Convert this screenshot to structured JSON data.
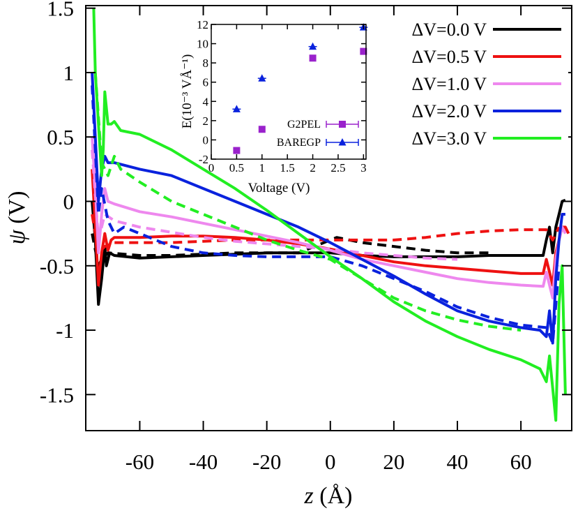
{
  "chart_data": [
    {
      "type": "line",
      "xlabel_var": "z",
      "xlabel_unit": "(Å)",
      "ylabel_var": "ψ",
      "ylabel_unit": "(V)",
      "xlim": [
        -77,
        76
      ],
      "ylim": [
        -1.78,
        1.52
      ],
      "xticks": [
        -60,
        -40,
        -20,
        0,
        20,
        40,
        60
      ],
      "yticks": [
        1.5,
        1,
        0.5,
        0,
        -0.5,
        -1,
        -1.5
      ],
      "xtick_labels": [
        "-60",
        "-40",
        "-20",
        "0",
        "20",
        "40",
        "60"
      ],
      "ytick_labels": [
        "1.5",
        "1",
        "0.5",
        "0",
        "-0.5",
        "-1",
        "-1.5"
      ],
      "grid": false,
      "legend_position": "top-right",
      "series": [
        {
          "name": "ΔV=0.0 V",
          "color": "#000000",
          "solid": [
            [
              -75,
              0
            ],
            [
              -74,
              -0.3
            ],
            [
              -73.5,
              -0.55
            ],
            [
              -73,
              -0.8
            ],
            [
              -72,
              -0.6
            ],
            [
              -71,
              -0.35
            ],
            [
              -70.5,
              -0.5
            ],
            [
              -69.5,
              -0.4
            ],
            [
              -68,
              -0.42
            ],
            [
              -60,
              -0.44
            ],
            [
              -50,
              -0.43
            ],
            [
              -40,
              -0.42
            ],
            [
              -30,
              -0.41
            ],
            [
              -20,
              -0.4
            ],
            [
              -10,
              -0.4
            ],
            [
              0,
              -0.4
            ],
            [
              10,
              -0.42
            ],
            [
              20,
              -0.43
            ],
            [
              30,
              -0.43
            ],
            [
              40,
              -0.43
            ],
            [
              50,
              -0.42
            ],
            [
              60,
              -0.42
            ],
            [
              67,
              -0.42
            ],
            [
              68,
              -0.3
            ],
            [
              69,
              -0.2
            ],
            [
              70,
              -0.4
            ],
            [
              71,
              -0.2
            ],
            [
              72,
              -0.1
            ],
            [
              73,
              0
            ],
            [
              74,
              0.01
            ]
          ],
          "dashed": [
            [
              -75,
              -0.25
            ],
            [
              -73,
              -0.5
            ],
            [
              -72,
              -0.45
            ],
            [
              -70,
              -0.4
            ],
            [
              -60,
              -0.42
            ],
            [
              -50,
              -0.42
            ],
            [
              -40,
              -0.41
            ],
            [
              -30,
              -0.4
            ],
            [
              -20,
              -0.4
            ],
            [
              -10,
              -0.4
            ],
            [
              0,
              -0.3
            ],
            [
              2,
              -0.28
            ],
            [
              10,
              -0.32
            ],
            [
              20,
              -0.35
            ],
            [
              30,
              -0.38
            ],
            [
              40,
              -0.4
            ],
            [
              50,
              -0.4
            ]
          ]
        },
        {
          "name": "ΔV=0.5 V",
          "color": "#ee1111",
          "solid": [
            [
              -75,
              0.25
            ],
            [
              -74,
              -0.2
            ],
            [
              -73,
              -0.65
            ],
            [
              -72,
              -0.4
            ],
            [
              -71,
              -0.25
            ],
            [
              -70,
              -0.38
            ],
            [
              -69,
              -0.3
            ],
            [
              -68,
              -0.28
            ],
            [
              -60,
              -0.28
            ],
            [
              -50,
              -0.27
            ],
            [
              -40,
              -0.27
            ],
            [
              -30,
              -0.28
            ],
            [
              -20,
              -0.3
            ],
            [
              -10,
              -0.33
            ],
            [
              0,
              -0.37
            ],
            [
              10,
              -0.42
            ],
            [
              20,
              -0.47
            ],
            [
              30,
              -0.5
            ],
            [
              40,
              -0.52
            ],
            [
              50,
              -0.54
            ],
            [
              60,
              -0.56
            ],
            [
              67,
              -0.56
            ],
            [
              68,
              -0.45
            ],
            [
              70,
              -0.65
            ],
            [
              71,
              -0.4
            ],
            [
              72,
              -0.3
            ],
            [
              73,
              -0.2
            ],
            [
              74,
              -0.2
            ],
            [
              75,
              -0.25
            ]
          ],
          "dashed": [
            [
              -75,
              -0.1
            ],
            [
              -73,
              -0.4
            ],
            [
              -71,
              -0.35
            ],
            [
              -68,
              -0.32
            ],
            [
              -60,
              -0.32
            ],
            [
              -50,
              -0.32
            ],
            [
              -40,
              -0.31
            ],
            [
              -30,
              -0.3
            ],
            [
              -20,
              -0.3
            ],
            [
              -10,
              -0.3
            ],
            [
              0,
              -0.3
            ],
            [
              10,
              -0.3
            ],
            [
              20,
              -0.3
            ],
            [
              30,
              -0.28
            ],
            [
              40,
              -0.25
            ],
            [
              50,
              -0.23
            ],
            [
              60,
              -0.22
            ],
            [
              68,
              -0.22
            ],
            [
              70,
              -0.3
            ],
            [
              72,
              -0.2
            ]
          ]
        },
        {
          "name": "ΔV=1.0 V",
          "color": "#ee88ee",
          "solid": [
            [
              -75,
              0.5
            ],
            [
              -74,
              0.1
            ],
            [
              -73,
              -0.4
            ],
            [
              -72,
              -0.1
            ],
            [
              -71,
              0.1
            ],
            [
              -70,
              0
            ],
            [
              -68,
              -0.02
            ],
            [
              -60,
              -0.08
            ],
            [
              -50,
              -0.12
            ],
            [
              -40,
              -0.17
            ],
            [
              -30,
              -0.22
            ],
            [
              -20,
              -0.27
            ],
            [
              -10,
              -0.32
            ],
            [
              0,
              -0.38
            ],
            [
              10,
              -0.45
            ],
            [
              20,
              -0.5
            ],
            [
              30,
              -0.55
            ],
            [
              40,
              -0.6
            ],
            [
              50,
              -0.63
            ],
            [
              60,
              -0.65
            ],
            [
              67,
              -0.66
            ],
            [
              68,
              -0.55
            ],
            [
              70,
              -0.75
            ],
            [
              71,
              -0.45
            ],
            [
              72,
              -0.3
            ],
            [
              73,
              -0.2
            ],
            [
              74,
              -0.25
            ]
          ],
          "dashed": [
            [
              -75,
              0.4
            ],
            [
              -73,
              -0.3
            ],
            [
              -71,
              -0.1
            ],
            [
              -68,
              -0.15
            ],
            [
              -60,
              -0.2
            ],
            [
              -50,
              -0.24
            ],
            [
              -40,
              -0.28
            ],
            [
              -30,
              -0.31
            ],
            [
              -20,
              -0.33
            ],
            [
              -10,
              -0.35
            ],
            [
              0,
              -0.37
            ],
            [
              10,
              -0.4
            ],
            [
              20,
              -0.42
            ],
            [
              30,
              -0.44
            ],
            [
              40,
              -0.45
            ]
          ]
        },
        {
          "name": "ΔV=2.0 V",
          "color": "#0a22dd",
          "solid": [
            [
              -75,
              1
            ],
            [
              -74,
              0.5
            ],
            [
              -73,
              0
            ],
            [
              -72,
              0.25
            ],
            [
              -71,
              0.35
            ],
            [
              -70,
              0.3
            ],
            [
              -68,
              0.3
            ],
            [
              -60,
              0.25
            ],
            [
              -50,
              0.2
            ],
            [
              -40,
              0.1
            ],
            [
              -30,
              0
            ],
            [
              -20,
              -0.1
            ],
            [
              -10,
              -0.2
            ],
            [
              0,
              -0.32
            ],
            [
              10,
              -0.45
            ],
            [
              20,
              -0.58
            ],
            [
              30,
              -0.72
            ],
            [
              40,
              -0.85
            ],
            [
              50,
              -0.93
            ],
            [
              60,
              -0.98
            ],
            [
              66,
              -1.0
            ],
            [
              68,
              -1.05
            ],
            [
              69,
              -0.85
            ],
            [
              70,
              -1.1
            ],
            [
              71,
              -0.6
            ],
            [
              72,
              -0.3
            ],
            [
              73,
              -0.1
            ],
            [
              74,
              -0.1
            ]
          ],
          "dashed": [
            [
              -75,
              0.9
            ],
            [
              -73,
              -0.1
            ],
            [
              -72,
              0.1
            ],
            [
              -70,
              -0.15
            ],
            [
              -68,
              -0.25
            ],
            [
              -65,
              -0.2
            ],
            [
              -60,
              -0.25
            ],
            [
              -50,
              -0.35
            ],
            [
              -40,
              -0.4
            ],
            [
              -30,
              -0.42
            ],
            [
              -20,
              -0.43
            ],
            [
              -10,
              -0.43
            ],
            [
              0,
              -0.43
            ],
            [
              10,
              -0.5
            ],
            [
              20,
              -0.6
            ],
            [
              30,
              -0.7
            ],
            [
              40,
              -0.82
            ],
            [
              50,
              -0.9
            ],
            [
              60,
              -0.96
            ],
            [
              68,
              -0.98
            ],
            [
              70,
              -1.1
            ],
            [
              72,
              -0.5
            ]
          ]
        },
        {
          "name": "ΔV=3.0 V",
          "color": "#22ee22",
          "solid": [
            [
              -74.5,
              1.5
            ],
            [
              -74,
              1
            ],
            [
              -73,
              0.6
            ],
            [
              -72,
              0.2
            ],
            [
              -71.5,
              0.4
            ],
            [
              -71,
              0.85
            ],
            [
              -70,
              0.6
            ],
            [
              -69,
              0.6
            ],
            [
              -68,
              0.62
            ],
            [
              -66,
              0.55
            ],
            [
              -60,
              0.52
            ],
            [
              -50,
              0.4
            ],
            [
              -40,
              0.25
            ],
            [
              -30,
              0.1
            ],
            [
              -20,
              -0.07
            ],
            [
              -10,
              -0.25
            ],
            [
              0,
              -0.43
            ],
            [
              10,
              -0.6
            ],
            [
              20,
              -0.78
            ],
            [
              30,
              -0.93
            ],
            [
              40,
              -1.05
            ],
            [
              50,
              -1.15
            ],
            [
              60,
              -1.23
            ],
            [
              66,
              -1.3
            ],
            [
              68,
              -1.4
            ],
            [
              69,
              -1.2
            ],
            [
              70,
              -1.45
            ],
            [
              71,
              -1.7
            ],
            [
              72,
              -0.8
            ],
            [
              73,
              -0.5
            ],
            [
              74,
              -1.5
            ]
          ],
          "dashed": [
            [
              -74,
              1
            ],
            [
              -72,
              0.3
            ],
            [
              -70,
              0.2
            ],
            [
              -68,
              0.35
            ],
            [
              -66,
              0.25
            ],
            [
              -60,
              0.15
            ],
            [
              -50,
              0
            ],
            [
              -40,
              -0.1
            ],
            [
              -30,
              -0.2
            ],
            [
              -20,
              -0.3
            ],
            [
              -10,
              -0.38
            ],
            [
              0,
              -0.45
            ],
            [
              10,
              -0.6
            ],
            [
              20,
              -0.75
            ],
            [
              30,
              -0.85
            ],
            [
              40,
              -0.92
            ],
            [
              50,
              -0.97
            ],
            [
              60,
              -1.0
            ]
          ]
        }
      ]
    },
    {
      "type": "scatter",
      "ylabel": "E(10⁻³ VÅ⁻¹)",
      "xlabel": "Voltage (V)",
      "xlim": [
        0,
        3.05
      ],
      "ylim": [
        -2,
        12
      ],
      "xticks": [
        0,
        0.5,
        1,
        1.5,
        2,
        2.5,
        3
      ],
      "yticks": [
        -2,
        0,
        2,
        4,
        6,
        8,
        10,
        12
      ],
      "xtick_labels": [
        "0",
        "0.5",
        "1",
        "1.5",
        "2",
        "2.5",
        "3"
      ],
      "ytick_labels": [
        "-2",
        "0",
        "2",
        "4",
        "6",
        "8",
        "10",
        "12"
      ],
      "legend_position": "bottom-right",
      "series": [
        {
          "name": "G2PEL",
          "color": "#9a22cc",
          "marker": "square",
          "x": [
            0.5,
            1.0,
            2.0,
            3.0
          ],
          "y": [
            -1.1,
            1.1,
            8.5,
            9.2
          ]
        },
        {
          "name": "BAREGP",
          "color": "#0a22dd",
          "marker": "triangle",
          "x": [
            0.5,
            1.0,
            2.0,
            3.0
          ],
          "y": [
            3.2,
            6.4,
            9.7,
            11.7
          ]
        }
      ]
    }
  ]
}
